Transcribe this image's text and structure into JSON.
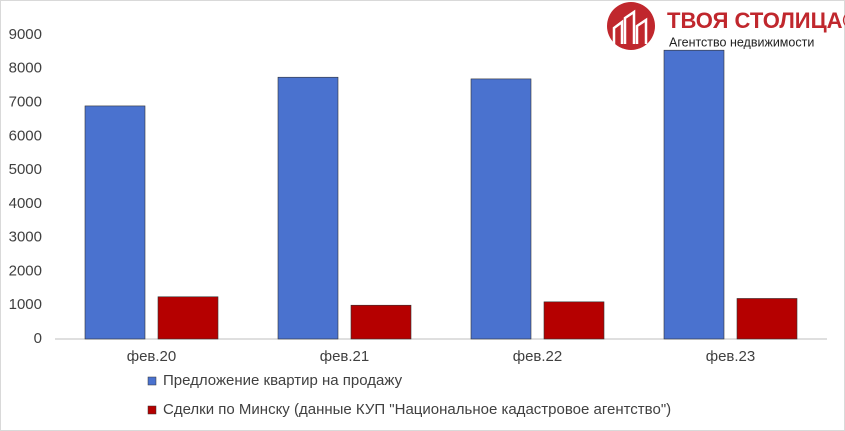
{
  "chart_data": {
    "type": "bar",
    "categories": [
      "фев.20",
      "фев.21",
      "фев.22",
      "фев.23"
    ],
    "series": [
      {
        "name": "Предложение квартир на продажу",
        "color": "#4a72cf",
        "values": [
          6900,
          7750,
          7700,
          8550
        ]
      },
      {
        "name": "Сделки по Минску (данные  КУП \"Национальное кадастровое агентство\")",
        "color": "#b50000",
        "values": [
          1250,
          1000,
          1100,
          1200
        ]
      }
    ],
    "ylim": [
      0,
      9000
    ],
    "yticks": [
      0,
      1000,
      2000,
      3000,
      4000,
      5000,
      6000,
      7000,
      8000,
      9000
    ],
    "grid": false,
    "legend": "bottom"
  },
  "logo": {
    "title": "ТВОЯ СТОЛИЦА®",
    "subtitle": "Агентство недвижимости"
  }
}
